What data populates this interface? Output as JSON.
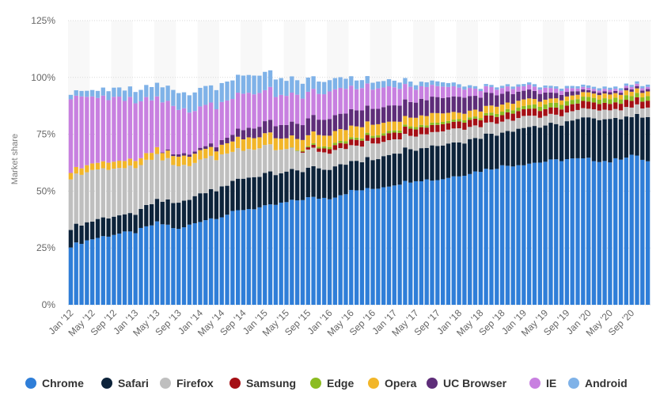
{
  "chart_data": {
    "type": "bar",
    "stacked": true,
    "title": "",
    "xlabel": "",
    "ylabel": "Market share",
    "ylim": [
      0,
      125
    ],
    "yticks": [
      0,
      25,
      50,
      75,
      100,
      125
    ],
    "ytick_labels": [
      "0%",
      "25%",
      "50%",
      "75%",
      "100%",
      "125%"
    ],
    "grid": true,
    "legend_position": "bottom",
    "x_tick_labels": [
      "Jan '12",
      "May '12",
      "Sep '12",
      "Jan '13",
      "May '13",
      "Sep '13",
      "Jan '14",
      "May '14",
      "Sep '14",
      "Jan '15",
      "May '15",
      "Sep '15",
      "Jan '16",
      "May '16",
      "Sep '16",
      "Jan '17",
      "May '17",
      "Sep '17",
      "Jan '18",
      "May '18",
      "Sep '18",
      "Jan '19",
      "May '19",
      "Sep '19",
      "Jan '20",
      "May '20",
      "Sep '20"
    ],
    "categories_start": "Jan '12",
    "category_count": 108,
    "series_order": [
      "Chrome",
      "Safari",
      "Firefox",
      "Samsung",
      "Edge",
      "Opera",
      "UC Browser",
      "IE",
      "Android"
    ],
    "series_anchors": {
      "Chrome": [
        [
          0,
          26
        ],
        [
          4,
          29
        ],
        [
          8,
          31
        ],
        [
          12,
          32
        ],
        [
          16,
          36
        ],
        [
          18,
          35
        ],
        [
          20,
          33
        ],
        [
          24,
          37
        ],
        [
          28,
          39
        ],
        [
          32,
          42
        ],
        [
          36,
          43
        ],
        [
          40,
          45
        ],
        [
          44,
          47
        ],
        [
          48,
          47
        ],
        [
          52,
          50
        ],
        [
          56,
          51
        ],
        [
          60,
          53
        ],
        [
          64,
          55
        ],
        [
          68,
          55
        ],
        [
          72,
          57
        ],
        [
          76,
          59
        ],
        [
          80,
          61
        ],
        [
          84,
          62
        ],
        [
          88,
          63
        ],
        [
          92,
          64
        ],
        [
          96,
          64
        ],
        [
          100,
          63
        ],
        [
          104,
          66
        ],
        [
          107,
          63
        ]
      ],
      "Safari": [
        [
          0,
          8
        ],
        [
          4,
          8
        ],
        [
          8,
          8
        ],
        [
          12,
          8
        ],
        [
          16,
          10
        ],
        [
          20,
          11
        ],
        [
          24,
          12
        ],
        [
          28,
          13
        ],
        [
          32,
          14
        ],
        [
          36,
          14
        ],
        [
          40,
          13
        ],
        [
          44,
          13
        ],
        [
          48,
          13
        ],
        [
          52,
          13
        ],
        [
          56,
          13
        ],
        [
          60,
          14
        ],
        [
          64,
          14
        ],
        [
          68,
          15
        ],
        [
          72,
          15
        ],
        [
          76,
          15
        ],
        [
          80,
          15
        ],
        [
          84,
          16
        ],
        [
          88,
          16
        ],
        [
          92,
          16
        ],
        [
          96,
          18
        ],
        [
          100,
          19
        ],
        [
          104,
          17
        ],
        [
          107,
          19
        ]
      ],
      "Firefox": [
        [
          0,
          23
        ],
        [
          4,
          22
        ],
        [
          8,
          21
        ],
        [
          12,
          20
        ],
        [
          16,
          19
        ],
        [
          20,
          16
        ],
        [
          24,
          15
        ],
        [
          28,
          14
        ],
        [
          32,
          13
        ],
        [
          36,
          12
        ],
        [
          40,
          10
        ],
        [
          44,
          8
        ],
        [
          48,
          7
        ],
        [
          52,
          7
        ],
        [
          56,
          7
        ],
        [
          60,
          6
        ],
        [
          64,
          6
        ],
        [
          68,
          6
        ],
        [
          72,
          6
        ],
        [
          76,
          5
        ],
        [
          80,
          5
        ],
        [
          84,
          5
        ],
        [
          88,
          4
        ],
        [
          92,
          4
        ],
        [
          96,
          4
        ],
        [
          100,
          4
        ],
        [
          104,
          4
        ],
        [
          107,
          4
        ]
      ],
      "Samsung": [
        [
          0,
          0
        ],
        [
          42,
          0
        ],
        [
          44,
          1
        ],
        [
          48,
          2
        ],
        [
          52,
          2.5
        ],
        [
          56,
          2.5
        ],
        [
          60,
          3
        ],
        [
          64,
          3
        ],
        [
          68,
          3
        ],
        [
          72,
          3
        ],
        [
          76,
          3
        ],
        [
          80,
          3
        ],
        [
          84,
          3
        ],
        [
          88,
          3
        ],
        [
          92,
          3
        ],
        [
          96,
          3
        ],
        [
          100,
          3
        ],
        [
          104,
          3
        ],
        [
          107,
          3
        ]
      ],
      "Edge": [
        [
          0,
          0
        ],
        [
          40,
          0
        ],
        [
          44,
          0.5
        ],
        [
          48,
          1
        ],
        [
          52,
          1
        ],
        [
          56,
          1
        ],
        [
          60,
          1
        ],
        [
          64,
          1
        ],
        [
          68,
          1
        ],
        [
          72,
          1
        ],
        [
          76,
          1
        ],
        [
          80,
          1.5
        ],
        [
          84,
          1.5
        ],
        [
          88,
          2
        ],
        [
          92,
          2
        ],
        [
          96,
          2
        ],
        [
          100,
          2
        ],
        [
          104,
          2
        ],
        [
          107,
          2
        ]
      ],
      "Opera": [
        [
          0,
          3
        ],
        [
          4,
          3
        ],
        [
          8,
          3
        ],
        [
          12,
          3
        ],
        [
          16,
          3
        ],
        [
          20,
          4
        ],
        [
          24,
          4
        ],
        [
          28,
          4
        ],
        [
          32,
          5
        ],
        [
          36,
          5
        ],
        [
          40,
          5
        ],
        [
          44,
          5
        ],
        [
          48,
          5
        ],
        [
          52,
          5
        ],
        [
          56,
          5
        ],
        [
          60,
          4
        ],
        [
          64,
          4
        ],
        [
          68,
          4
        ],
        [
          72,
          3
        ],
        [
          76,
          3
        ],
        [
          80,
          3
        ],
        [
          84,
          3
        ],
        [
          88,
          2
        ],
        [
          92,
          2
        ],
        [
          96,
          2
        ],
        [
          100,
          2
        ],
        [
          104,
          2
        ],
        [
          107,
          2
        ]
      ],
      "UC Browser": [
        [
          0,
          0
        ],
        [
          16,
          0
        ],
        [
          20,
          1
        ],
        [
          24,
          1
        ],
        [
          28,
          2
        ],
        [
          32,
          4
        ],
        [
          36,
          5
        ],
        [
          40,
          6
        ],
        [
          44,
          7
        ],
        [
          48,
          7
        ],
        [
          52,
          7
        ],
        [
          56,
          7
        ],
        [
          60,
          7
        ],
        [
          64,
          7
        ],
        [
          68,
          7
        ],
        [
          72,
          7
        ],
        [
          76,
          6
        ],
        [
          80,
          5
        ],
        [
          84,
          4
        ],
        [
          88,
          3
        ],
        [
          92,
          2
        ],
        [
          96,
          1
        ],
        [
          100,
          1
        ],
        [
          104,
          1
        ],
        [
          107,
          1
        ]
      ],
      "IE": [
        [
          0,
          33
        ],
        [
          4,
          29
        ],
        [
          8,
          28
        ],
        [
          12,
          26
        ],
        [
          16,
          22
        ],
        [
          20,
          20
        ],
        [
          24,
          18
        ],
        [
          28,
          17
        ],
        [
          32,
          16
        ],
        [
          36,
          14
        ],
        [
          40,
          13
        ],
        [
          44,
          12
        ],
        [
          48,
          12
        ],
        [
          52,
          10
        ],
        [
          56,
          9
        ],
        [
          60,
          8
        ],
        [
          64,
          6
        ],
        [
          68,
          5
        ],
        [
          72,
          4
        ],
        [
          76,
          3
        ],
        [
          80,
          2.5
        ],
        [
          84,
          2
        ],
        [
          88,
          2
        ],
        [
          92,
          1.5
        ],
        [
          96,
          1
        ],
        [
          100,
          1
        ],
        [
          104,
          1
        ],
        [
          107,
          1
        ]
      ],
      "Android": [
        [
          0,
          2
        ],
        [
          4,
          3
        ],
        [
          8,
          4
        ],
        [
          12,
          5
        ],
        [
          16,
          6
        ],
        [
          20,
          7
        ],
        [
          24,
          8
        ],
        [
          28,
          8
        ],
        [
          32,
          8
        ],
        [
          36,
          8
        ],
        [
          40,
          7
        ],
        [
          44,
          6
        ],
        [
          48,
          5
        ],
        [
          52,
          4
        ],
        [
          56,
          3
        ],
        [
          60,
          3
        ],
        [
          64,
          2
        ],
        [
          68,
          2
        ],
        [
          72,
          1.5
        ],
        [
          76,
          1
        ],
        [
          80,
          1
        ],
        [
          84,
          1
        ],
        [
          88,
          1
        ],
        [
          92,
          1
        ],
        [
          96,
          1
        ],
        [
          100,
          1
        ],
        [
          104,
          1
        ],
        [
          107,
          1
        ]
      ]
    }
  },
  "legend": [
    {
      "label": "Chrome",
      "color": "#2f7ed8"
    },
    {
      "label": "Safari",
      "color": "#0d233a"
    },
    {
      "label": "Firefox",
      "color": "#bfbfbf"
    },
    {
      "label": "Samsung",
      "color": "#a50f15"
    },
    {
      "label": "Edge",
      "color": "#8bbc21"
    },
    {
      "label": "Opera",
      "color": "#f2b629"
    },
    {
      "label": "UC Browser",
      "color": "#5e2d79"
    },
    {
      "label": "IE",
      "color": "#c880e0"
    },
    {
      "label": "Android",
      "color": "#7fb2e8"
    }
  ],
  "colors": {
    "band": "#f8f8f8",
    "grid": "#d9d9d9",
    "tick_text": "#666666"
  }
}
